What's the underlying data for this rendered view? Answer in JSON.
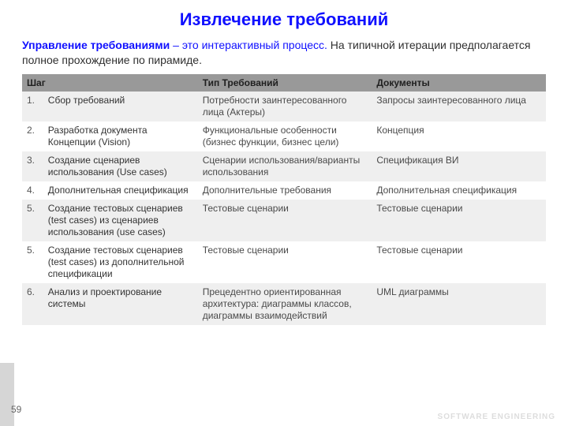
{
  "title": "Извлечение требований",
  "lead": {
    "bold": "Управление требованиями",
    "dash": " – это интерактивный процесс. ",
    "rest": "На типичной итерации предполагается полное прохождение по пирамиде."
  },
  "table": {
    "headers": {
      "step": "Шаг",
      "type": "Тип Требований",
      "doc": "Документы"
    },
    "header_bg": "#999999",
    "row_even_bg": "#efefef",
    "row_odd_bg": "#ffffff",
    "rows": [
      {
        "n": "1.",
        "step": "Сбор требований",
        "type": "Потребности заинтересованного лица (Актеры)",
        "doc": "Запросы заинтересованного лица"
      },
      {
        "n": "2.",
        "step": "Разработка документа Концепции (Vision)",
        "type": "Функциональные особенности (бизнес функции, бизнес цели)",
        "doc": "Концепция"
      },
      {
        "n": "3.",
        "step": "Создание сценариев использования (Use cases)",
        "type": "Сценарии использования/варианты использования",
        "doc": "Спецификация ВИ"
      },
      {
        "n": "4.",
        "step": "Дополнительная спецификация",
        "type": "Дополнительные требования",
        "doc": "Дополнительная спецификация"
      },
      {
        "n": "5.",
        "step": "Создание тестовых сценариев (test cases) из сценариев использования (use cases)",
        "type": "Тестовые сценарии",
        "doc": "Тестовые сценарии"
      },
      {
        "n": "5.",
        "step": "Создание тестовых сценариев (test cases) из дополнительной спецификации",
        "type": "Тестовые сценарии",
        "doc": "Тестовые сценарии"
      },
      {
        "n": "6.",
        "step": "Анализ и проектирование системы",
        "type": "Прецедентно ориентированная архитектура: диаграммы классов, диаграммы взаимодействий",
        "doc": "UML диаграммы"
      }
    ]
  },
  "page_number": "59",
  "footer_mark": "SOFTWARE ENGINEERING",
  "colors": {
    "title": "#1010ff",
    "text": "#333333",
    "muted": "#4a4a4a"
  }
}
